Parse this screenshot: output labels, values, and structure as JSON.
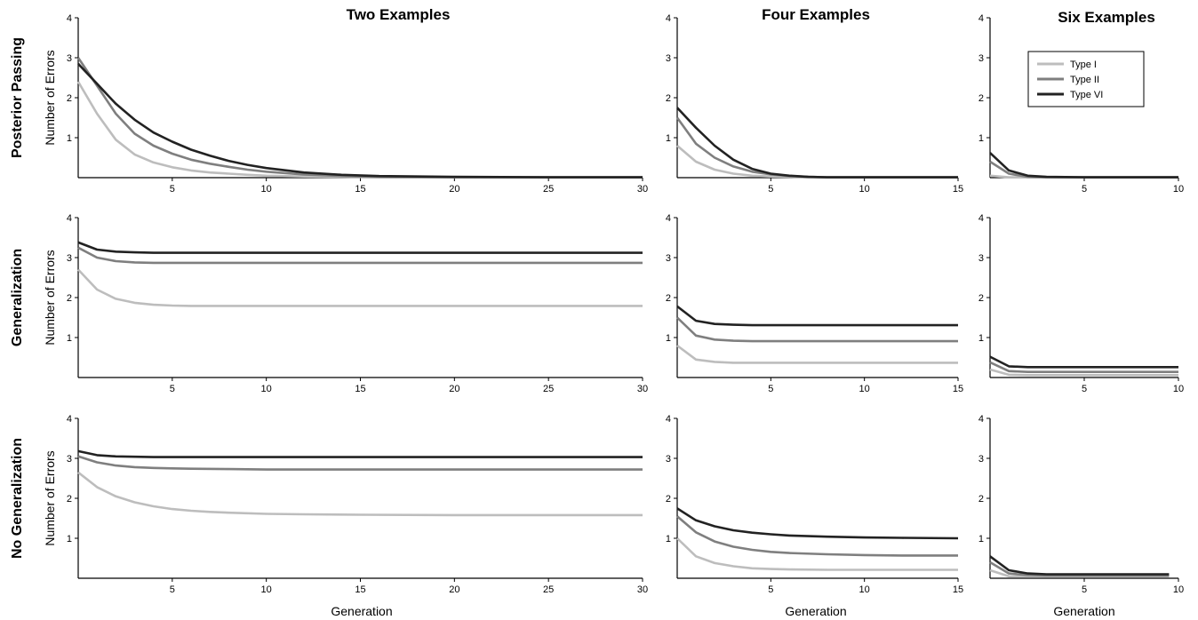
{
  "columns": [
    "Two Examples",
    "Four Examples",
    "Six Examples"
  ],
  "rows": [
    "Posterior Passing",
    "Generalization",
    "No Generalization"
  ],
  "ylabel": "Number of Errors",
  "xlabel": "Generation",
  "legend": [
    {
      "name": "Type I",
      "color": "#bdbdbd"
    },
    {
      "name": "Type II",
      "color": "#7f7f7f"
    },
    {
      "name": "Type VI",
      "color": "#222222"
    }
  ],
  "chart_data": [
    {
      "type": "line",
      "row": 0,
      "col": 0,
      "xlim": [
        0,
        30
      ],
      "ylim": [
        0,
        4
      ],
      "xticks": [
        5,
        10,
        15,
        20,
        25,
        30
      ],
      "yticks": [
        1,
        2,
        3,
        4
      ],
      "series": [
        {
          "name": "Type I",
          "x": [
            0,
            1,
            2,
            3,
            4,
            5,
            6,
            7,
            8,
            9,
            10,
            12,
            14,
            16,
            20,
            25,
            30
          ],
          "values": [
            2.4,
            1.6,
            0.95,
            0.58,
            0.38,
            0.26,
            0.18,
            0.13,
            0.1,
            0.07,
            0.05,
            0.03,
            0.02,
            0.01,
            0.01,
            0.01,
            0.01
          ]
        },
        {
          "name": "Type II",
          "x": [
            0,
            1,
            2,
            3,
            4,
            5,
            6,
            7,
            8,
            9,
            10,
            12,
            14,
            16,
            20,
            25,
            30
          ],
          "values": [
            3.0,
            2.3,
            1.6,
            1.1,
            0.8,
            0.6,
            0.45,
            0.35,
            0.27,
            0.2,
            0.15,
            0.08,
            0.04,
            0.02,
            0.01,
            0.01,
            0.01
          ]
        },
        {
          "name": "Type VI",
          "x": [
            0,
            1,
            2,
            3,
            4,
            5,
            6,
            7,
            8,
            9,
            10,
            12,
            14,
            16,
            20,
            25,
            30
          ],
          "values": [
            2.85,
            2.35,
            1.85,
            1.45,
            1.13,
            0.9,
            0.7,
            0.55,
            0.42,
            0.32,
            0.24,
            0.13,
            0.07,
            0.04,
            0.02,
            0.01,
            0.01
          ]
        }
      ]
    },
    {
      "type": "line",
      "row": 0,
      "col": 1,
      "xlim": [
        0,
        15
      ],
      "ylim": [
        0,
        4
      ],
      "xticks": [
        5,
        10,
        15
      ],
      "yticks": [
        1,
        2,
        3,
        4
      ],
      "series": [
        {
          "name": "Type I",
          "x": [
            0,
            1,
            2,
            3,
            4,
            5,
            6,
            7,
            8,
            10,
            15
          ],
          "values": [
            0.8,
            0.4,
            0.2,
            0.1,
            0.05,
            0.03,
            0.02,
            0.01,
            0.01,
            0.01,
            0.01
          ]
        },
        {
          "name": "Type II",
          "x": [
            0,
            1,
            2,
            3,
            4,
            5,
            6,
            7,
            8,
            10,
            15
          ],
          "values": [
            1.5,
            0.85,
            0.5,
            0.28,
            0.15,
            0.08,
            0.04,
            0.02,
            0.01,
            0.01,
            0.01
          ]
        },
        {
          "name": "Type VI",
          "x": [
            0,
            1,
            2,
            3,
            4,
            5,
            6,
            7,
            8,
            10,
            15
          ],
          "values": [
            1.75,
            1.25,
            0.8,
            0.45,
            0.22,
            0.1,
            0.05,
            0.02,
            0.01,
            0.01,
            0.01
          ]
        }
      ]
    },
    {
      "type": "line",
      "row": 0,
      "col": 2,
      "xlim": [
        0,
        10
      ],
      "ylim": [
        0,
        4
      ],
      "xticks": [
        5,
        10
      ],
      "yticks": [
        1,
        2,
        3,
        4
      ],
      "series": [
        {
          "name": "Type I",
          "x": [
            0,
            1,
            2,
            3,
            5,
            10
          ],
          "values": [
            0.05,
            0.01,
            0.01,
            0.01,
            0.01,
            0.01
          ]
        },
        {
          "name": "Type II",
          "x": [
            0,
            1,
            2,
            3,
            5,
            10
          ],
          "values": [
            0.4,
            0.1,
            0.02,
            0.01,
            0.01,
            0.01
          ]
        },
        {
          "name": "Type VI",
          "x": [
            0,
            1,
            2,
            3,
            5,
            10
          ],
          "values": [
            0.62,
            0.18,
            0.05,
            0.02,
            0.01,
            0.01
          ]
        }
      ]
    },
    {
      "type": "line",
      "row": 1,
      "col": 0,
      "xlim": [
        0,
        30
      ],
      "ylim": [
        0,
        4
      ],
      "xticks": [
        5,
        10,
        15,
        20,
        25,
        30
      ],
      "yticks": [
        1,
        2,
        3,
        4
      ],
      "series": [
        {
          "name": "Type I",
          "x": [
            0,
            1,
            2,
            3,
            4,
            5,
            6,
            8,
            10,
            15,
            20,
            25,
            30
          ],
          "values": [
            2.7,
            2.2,
            1.97,
            1.87,
            1.82,
            1.8,
            1.79,
            1.79,
            1.79,
            1.79,
            1.79,
            1.79,
            1.79
          ]
        },
        {
          "name": "Type II",
          "x": [
            0,
            1,
            2,
            3,
            4,
            5,
            6,
            8,
            10,
            15,
            20,
            25,
            30
          ],
          "values": [
            3.25,
            3.0,
            2.91,
            2.88,
            2.87,
            2.87,
            2.87,
            2.87,
            2.87,
            2.87,
            2.87,
            2.87,
            2.87
          ]
        },
        {
          "name": "Type VI",
          "x": [
            0,
            1,
            2,
            3,
            4,
            5,
            6,
            8,
            10,
            15,
            20,
            25,
            30
          ],
          "values": [
            3.38,
            3.2,
            3.15,
            3.13,
            3.12,
            3.12,
            3.12,
            3.12,
            3.12,
            3.12,
            3.12,
            3.12,
            3.12
          ]
        }
      ]
    },
    {
      "type": "line",
      "row": 1,
      "col": 1,
      "xlim": [
        0,
        15
      ],
      "ylim": [
        0,
        4
      ],
      "xticks": [
        5,
        10,
        15
      ],
      "yticks": [
        1,
        2,
        3,
        4
      ],
      "series": [
        {
          "name": "Type I",
          "x": [
            0,
            1,
            2,
            3,
            4,
            5,
            6,
            8,
            10,
            15
          ],
          "values": [
            0.8,
            0.45,
            0.39,
            0.37,
            0.37,
            0.37,
            0.37,
            0.37,
            0.37,
            0.37
          ]
        },
        {
          "name": "Type II",
          "x": [
            0,
            1,
            2,
            3,
            4,
            5,
            6,
            8,
            10,
            15
          ],
          "values": [
            1.5,
            1.05,
            0.95,
            0.92,
            0.91,
            0.91,
            0.91,
            0.91,
            0.91,
            0.91
          ]
        },
        {
          "name": "Type VI",
          "x": [
            0,
            1,
            2,
            3,
            4,
            5,
            6,
            8,
            10,
            15
          ],
          "values": [
            1.78,
            1.42,
            1.34,
            1.32,
            1.31,
            1.31,
            1.31,
            1.31,
            1.31,
            1.31
          ]
        }
      ]
    },
    {
      "type": "line",
      "row": 1,
      "col": 2,
      "xlim": [
        0,
        10
      ],
      "ylim": [
        0,
        4
      ],
      "xticks": [
        5,
        10
      ],
      "yticks": [
        1,
        2,
        3,
        4
      ],
      "series": [
        {
          "name": "Type I",
          "x": [
            0,
            1,
            2,
            3,
            5,
            10
          ],
          "values": [
            0.2,
            0.07,
            0.06,
            0.06,
            0.06,
            0.06
          ]
        },
        {
          "name": "Type II",
          "x": [
            0,
            1,
            2,
            3,
            5,
            10
          ],
          "values": [
            0.38,
            0.16,
            0.14,
            0.14,
            0.14,
            0.14
          ]
        },
        {
          "name": "Type VI",
          "x": [
            0,
            1,
            2,
            3,
            5,
            10
          ],
          "values": [
            0.52,
            0.28,
            0.26,
            0.26,
            0.26,
            0.26
          ]
        }
      ]
    },
    {
      "type": "line",
      "row": 2,
      "col": 0,
      "xlim": [
        0,
        30
      ],
      "ylim": [
        0,
        4
      ],
      "xticks": [
        5,
        10,
        15,
        20,
        25,
        30
      ],
      "yticks": [
        1,
        2,
        3,
        4
      ],
      "series": [
        {
          "name": "Type I",
          "x": [
            0,
            1,
            2,
            3,
            4,
            5,
            6,
            7,
            8,
            10,
            12,
            15,
            20,
            25,
            30
          ],
          "values": [
            2.65,
            2.28,
            2.05,
            1.9,
            1.8,
            1.73,
            1.69,
            1.66,
            1.64,
            1.61,
            1.6,
            1.59,
            1.58,
            1.58,
            1.58
          ]
        },
        {
          "name": "Type II",
          "x": [
            0,
            1,
            2,
            3,
            4,
            5,
            6,
            8,
            10,
            15,
            20,
            25,
            30
          ],
          "values": [
            3.05,
            2.9,
            2.82,
            2.78,
            2.76,
            2.75,
            2.74,
            2.73,
            2.72,
            2.72,
            2.72,
            2.72,
            2.72
          ]
        },
        {
          "name": "Type VI",
          "x": [
            0,
            1,
            2,
            3,
            4,
            5,
            6,
            8,
            10,
            15,
            20,
            25,
            30
          ],
          "values": [
            3.18,
            3.08,
            3.05,
            3.04,
            3.03,
            3.03,
            3.03,
            3.03,
            3.03,
            3.03,
            3.03,
            3.03,
            3.03
          ]
        }
      ]
    },
    {
      "type": "line",
      "row": 2,
      "col": 1,
      "xlim": [
        0,
        15
      ],
      "ylim": [
        0,
        4
      ],
      "xticks": [
        5,
        10,
        15
      ],
      "yticks": [
        1,
        2,
        3,
        4
      ],
      "series": [
        {
          "name": "Type I",
          "x": [
            0,
            1,
            2,
            3,
            4,
            5,
            6,
            8,
            10,
            12,
            15
          ],
          "values": [
            1.0,
            0.55,
            0.38,
            0.3,
            0.25,
            0.23,
            0.22,
            0.21,
            0.21,
            0.21,
            0.21
          ]
        },
        {
          "name": "Type II",
          "x": [
            0,
            1,
            2,
            3,
            4,
            5,
            6,
            8,
            10,
            12,
            15
          ],
          "values": [
            1.55,
            1.15,
            0.92,
            0.79,
            0.71,
            0.66,
            0.63,
            0.6,
            0.58,
            0.57,
            0.57
          ]
        },
        {
          "name": "Type VI",
          "x": [
            0,
            1,
            2,
            3,
            4,
            5,
            6,
            8,
            10,
            12,
            15
          ],
          "values": [
            1.75,
            1.45,
            1.3,
            1.2,
            1.14,
            1.1,
            1.07,
            1.04,
            1.02,
            1.01,
            1.0
          ]
        }
      ]
    },
    {
      "type": "line",
      "row": 2,
      "col": 2,
      "xlim": [
        0,
        10
      ],
      "ylim": [
        0,
        4
      ],
      "xticks": [
        5,
        10
      ],
      "yticks": [
        1,
        2,
        3,
        4
      ],
      "series": [
        {
          "name": "Type I",
          "x": [
            0,
            1,
            2,
            3,
            5,
            9.5
          ],
          "values": [
            0.2,
            0.05,
            0.04,
            0.04,
            0.04,
            0.04
          ]
        },
        {
          "name": "Type II",
          "x": [
            0,
            1,
            2,
            3,
            5,
            9.5
          ],
          "values": [
            0.4,
            0.12,
            0.08,
            0.07,
            0.07,
            0.07
          ]
        },
        {
          "name": "Type VI",
          "x": [
            0,
            1,
            2,
            3,
            5,
            9.5
          ],
          "values": [
            0.55,
            0.2,
            0.12,
            0.1,
            0.1,
            0.1
          ]
        }
      ]
    }
  ]
}
